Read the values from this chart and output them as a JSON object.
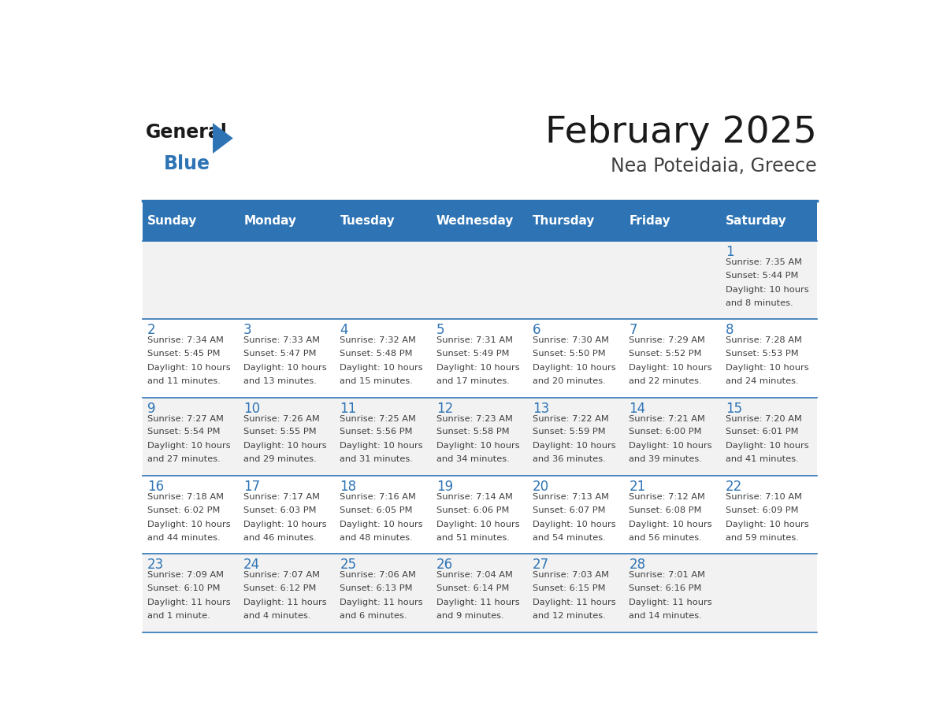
{
  "title": "February 2025",
  "subtitle": "Nea Poteidaia, Greece",
  "header_bg": "#2E74B5",
  "header_text_color": "#FFFFFF",
  "cell_bg_odd": "#F2F2F2",
  "cell_bg_even": "#FFFFFF",
  "day_number_color": "#2E74B5",
  "info_text_color": "#404040",
  "border_color": "#2E74B5",
  "line_color": "#2E74B5",
  "days_of_week": [
    "Sunday",
    "Monday",
    "Tuesday",
    "Wednesday",
    "Thursday",
    "Friday",
    "Saturday"
  ],
  "weeks": [
    [
      null,
      null,
      null,
      null,
      null,
      null,
      1
    ],
    [
      2,
      3,
      4,
      5,
      6,
      7,
      8
    ],
    [
      9,
      10,
      11,
      12,
      13,
      14,
      15
    ],
    [
      16,
      17,
      18,
      19,
      20,
      21,
      22
    ],
    [
      23,
      24,
      25,
      26,
      27,
      28,
      null
    ]
  ],
  "day_data": {
    "1": {
      "sunrise": "7:35 AM",
      "sunset": "5:44 PM",
      "daylight_hours": 10,
      "daylight_minutes": 8
    },
    "2": {
      "sunrise": "7:34 AM",
      "sunset": "5:45 PM",
      "daylight_hours": 10,
      "daylight_minutes": 11
    },
    "3": {
      "sunrise": "7:33 AM",
      "sunset": "5:47 PM",
      "daylight_hours": 10,
      "daylight_minutes": 13
    },
    "4": {
      "sunrise": "7:32 AM",
      "sunset": "5:48 PM",
      "daylight_hours": 10,
      "daylight_minutes": 15
    },
    "5": {
      "sunrise": "7:31 AM",
      "sunset": "5:49 PM",
      "daylight_hours": 10,
      "daylight_minutes": 17
    },
    "6": {
      "sunrise": "7:30 AM",
      "sunset": "5:50 PM",
      "daylight_hours": 10,
      "daylight_minutes": 20
    },
    "7": {
      "sunrise": "7:29 AM",
      "sunset": "5:52 PM",
      "daylight_hours": 10,
      "daylight_minutes": 22
    },
    "8": {
      "sunrise": "7:28 AM",
      "sunset": "5:53 PM",
      "daylight_hours": 10,
      "daylight_minutes": 24
    },
    "9": {
      "sunrise": "7:27 AM",
      "sunset": "5:54 PM",
      "daylight_hours": 10,
      "daylight_minutes": 27
    },
    "10": {
      "sunrise": "7:26 AM",
      "sunset": "5:55 PM",
      "daylight_hours": 10,
      "daylight_minutes": 29
    },
    "11": {
      "sunrise": "7:25 AM",
      "sunset": "5:56 PM",
      "daylight_hours": 10,
      "daylight_minutes": 31
    },
    "12": {
      "sunrise": "7:23 AM",
      "sunset": "5:58 PM",
      "daylight_hours": 10,
      "daylight_minutes": 34
    },
    "13": {
      "sunrise": "7:22 AM",
      "sunset": "5:59 PM",
      "daylight_hours": 10,
      "daylight_minutes": 36
    },
    "14": {
      "sunrise": "7:21 AM",
      "sunset": "6:00 PM",
      "daylight_hours": 10,
      "daylight_minutes": 39
    },
    "15": {
      "sunrise": "7:20 AM",
      "sunset": "6:01 PM",
      "daylight_hours": 10,
      "daylight_minutes": 41
    },
    "16": {
      "sunrise": "7:18 AM",
      "sunset": "6:02 PM",
      "daylight_hours": 10,
      "daylight_minutes": 44
    },
    "17": {
      "sunrise": "7:17 AM",
      "sunset": "6:03 PM",
      "daylight_hours": 10,
      "daylight_minutes": 46
    },
    "18": {
      "sunrise": "7:16 AM",
      "sunset": "6:05 PM",
      "daylight_hours": 10,
      "daylight_minutes": 48
    },
    "19": {
      "sunrise": "7:14 AM",
      "sunset": "6:06 PM",
      "daylight_hours": 10,
      "daylight_minutes": 51
    },
    "20": {
      "sunrise": "7:13 AM",
      "sunset": "6:07 PM",
      "daylight_hours": 10,
      "daylight_minutes": 54
    },
    "21": {
      "sunrise": "7:12 AM",
      "sunset": "6:08 PM",
      "daylight_hours": 10,
      "daylight_minutes": 56
    },
    "22": {
      "sunrise": "7:10 AM",
      "sunset": "6:09 PM",
      "daylight_hours": 10,
      "daylight_minutes": 59
    },
    "23": {
      "sunrise": "7:09 AM",
      "sunset": "6:10 PM",
      "daylight_hours": 11,
      "daylight_minutes": 1
    },
    "24": {
      "sunrise": "7:07 AM",
      "sunset": "6:12 PM",
      "daylight_hours": 11,
      "daylight_minutes": 4
    },
    "25": {
      "sunrise": "7:06 AM",
      "sunset": "6:13 PM",
      "daylight_hours": 11,
      "daylight_minutes": 6
    },
    "26": {
      "sunrise": "7:04 AM",
      "sunset": "6:14 PM",
      "daylight_hours": 11,
      "daylight_minutes": 9
    },
    "27": {
      "sunrise": "7:03 AM",
      "sunset": "6:15 PM",
      "daylight_hours": 11,
      "daylight_minutes": 12
    },
    "28": {
      "sunrise": "7:01 AM",
      "sunset": "6:16 PM",
      "daylight_hours": 11,
      "daylight_minutes": 14
    }
  }
}
